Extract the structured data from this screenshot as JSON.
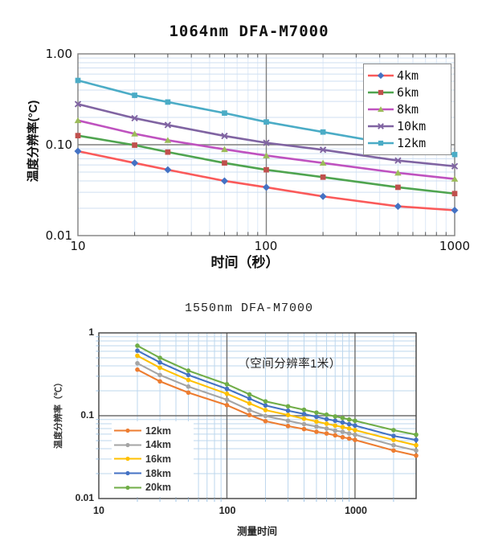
{
  "page": {
    "background": "#ffffff"
  },
  "chart_data": [
    {
      "type": "line",
      "title": "1064nm DFA-M7000",
      "xlabel": "时间（秒）",
      "ylabel": "温度分辨率(°C)",
      "xscale": "log",
      "yscale": "log",
      "xlim": [
        10,
        1000
      ],
      "ylim": [
        0.01,
        1.0
      ],
      "xtick_labels": [
        "10",
        "100",
        "1000"
      ],
      "ytick_labels": [
        "1.00",
        "0.10",
        "0.01"
      ],
      "legend_position": "top-right",
      "grid": {
        "minor": true,
        "x_major": [
          100
        ],
        "y_major": [
          0.1
        ]
      },
      "x": [
        10,
        20,
        30,
        60,
        100,
        200,
        500,
        1000
      ],
      "series": [
        {
          "name": "4km",
          "line_color": "#fa5a5a",
          "marker": "diamond",
          "marker_color": "#4472c4",
          "values": [
            0.085,
            0.063,
            0.053,
            0.04,
            0.034,
            0.027,
            0.021,
            0.019
          ]
        },
        {
          "name": "6km",
          "line_color": "#4fa44f",
          "marker": "square",
          "marker_color": "#c0504d",
          "values": [
            0.126,
            0.099,
            0.083,
            0.063,
            0.053,
            0.044,
            0.034,
            0.029
          ]
        },
        {
          "name": "8km",
          "line_color": "#bf52bf",
          "marker": "triangle",
          "marker_color": "#9bbb59",
          "values": [
            0.185,
            0.132,
            0.112,
            0.089,
            0.076,
            0.063,
            0.049,
            0.042
          ]
        },
        {
          "name": "10km",
          "line_color": "#8064a2",
          "marker": "x",
          "marker_color": "#8064a2",
          "values": [
            0.28,
            0.196,
            0.165,
            0.125,
            0.105,
            0.088,
            0.067,
            0.058
          ]
        },
        {
          "name": "12km",
          "line_color": "#4bacc6",
          "marker": "square",
          "marker_color": "#4bacc6",
          "values": [
            0.51,
            0.35,
            0.295,
            0.223,
            0.178,
            0.138,
            0.099,
            0.078
          ]
        }
      ]
    },
    {
      "type": "line",
      "title": "1550nm DFA-M7000",
      "xlabel": "测量时间",
      "ylabel": "温度分辨率（℃）",
      "annotation": "（空间分辨率1米）",
      "xscale": "log",
      "yscale": "log",
      "xlim": [
        10,
        3000
      ],
      "ylim": [
        0.01,
        1.0
      ],
      "xtick_labels": [
        "10",
        "100",
        "1000"
      ],
      "ytick_labels": [
        "1",
        "0.1",
        "0.01"
      ],
      "legend_position": "bottom-left",
      "grid": {
        "minor": true,
        "x_major": [
          100,
          1000
        ],
        "y_major": [
          0.1
        ]
      },
      "x": [
        20,
        30,
        50,
        100,
        150,
        200,
        300,
        400,
        500,
        600,
        700,
        800,
        900,
        1000,
        2000,
        3000
      ],
      "series": [
        {
          "name": "12km",
          "color": "#ed7d31",
          "marker": "circle",
          "values": [
            0.36,
            0.26,
            0.19,
            0.134,
            0.102,
            0.086,
            0.075,
            0.069,
            0.064,
            0.061,
            0.058,
            0.055,
            0.053,
            0.051,
            0.038,
            0.033
          ]
        },
        {
          "name": "14km",
          "color": "#a5a5a5",
          "marker": "circle",
          "values": [
            0.43,
            0.31,
            0.225,
            0.156,
            0.117,
            0.099,
            0.087,
            0.079,
            0.074,
            0.07,
            0.066,
            0.064,
            0.061,
            0.059,
            0.044,
            0.038
          ]
        },
        {
          "name": "16km",
          "color": "#ffc000",
          "marker": "circle",
          "values": [
            0.53,
            0.38,
            0.27,
            0.184,
            0.141,
            0.117,
            0.102,
            0.092,
            0.085,
            0.08,
            0.076,
            0.073,
            0.07,
            0.067,
            0.051,
            0.044
          ]
        },
        {
          "name": "18km",
          "color": "#4472c4",
          "marker": "circle",
          "values": [
            0.61,
            0.44,
            0.31,
            0.211,
            0.161,
            0.133,
            0.115,
            0.105,
            0.097,
            0.091,
            0.087,
            0.083,
            0.079,
            0.076,
            0.057,
            0.051
          ]
        },
        {
          "name": "20km",
          "color": "#70ad47",
          "marker": "circle",
          "values": [
            0.7,
            0.5,
            0.35,
            0.24,
            0.181,
            0.149,
            0.13,
            0.118,
            0.109,
            0.103,
            0.098,
            0.094,
            0.09,
            0.087,
            0.067,
            0.059
          ]
        }
      ]
    }
  ]
}
